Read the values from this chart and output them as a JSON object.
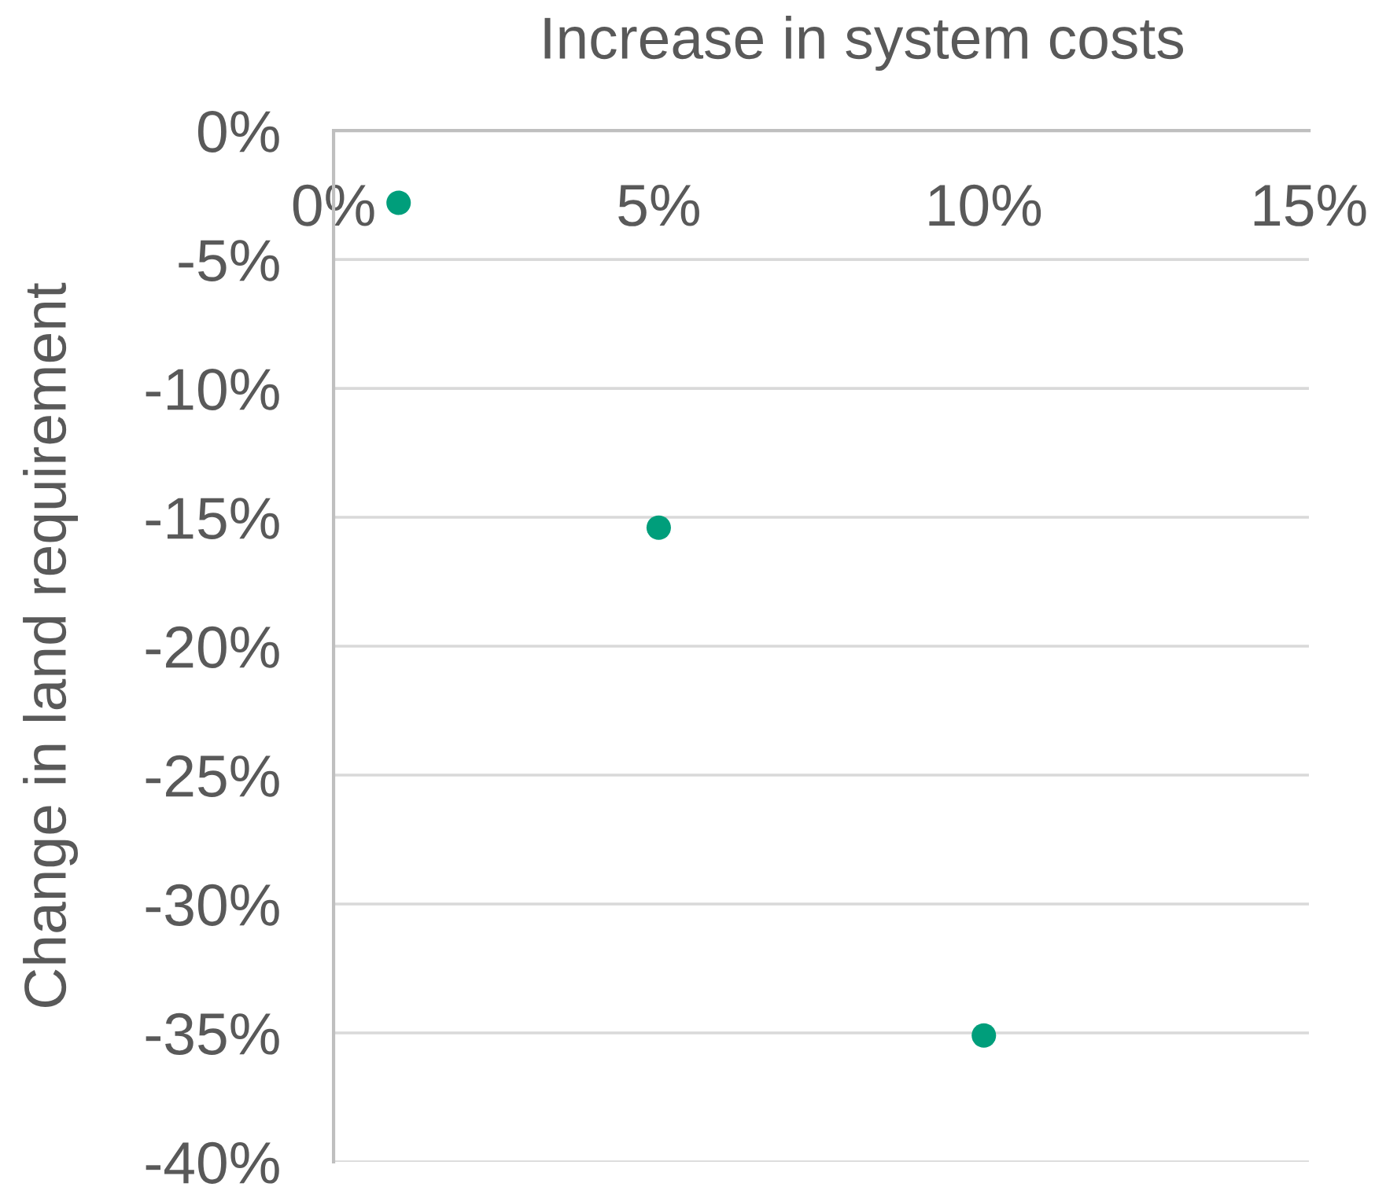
{
  "chart_data": {
    "type": "scatter",
    "xlabel": "Increase in system costs",
    "ylabel": "Change in land requirement",
    "x": [
      1,
      5,
      10
    ],
    "values": [
      -2.8,
      -15.4,
      -35.1
    ],
    "color": "#009e7b",
    "marker": "circle",
    "xlim": [
      0,
      15
    ],
    "xticks": [
      {
        "value": 0,
        "label": "0%"
      },
      {
        "value": 5,
        "label": "5%"
      },
      {
        "value": 10,
        "label": "10%"
      },
      {
        "value": 15,
        "label": "15%"
      }
    ],
    "ylim": [
      -40,
      0
    ],
    "yticks": [
      {
        "value": 0,
        "label": "0%"
      },
      {
        "value": -5,
        "label": "-5%"
      },
      {
        "value": -10,
        "label": "-10%"
      },
      {
        "value": -15,
        "label": "-15%"
      },
      {
        "value": -20,
        "label": "-20%"
      },
      {
        "value": -25,
        "label": "-25%"
      },
      {
        "value": -30,
        "label": "-30%"
      },
      {
        "value": -35,
        "label": "-35%"
      },
      {
        "value": -40,
        "label": "-40%"
      }
    ],
    "grid": "y"
  }
}
